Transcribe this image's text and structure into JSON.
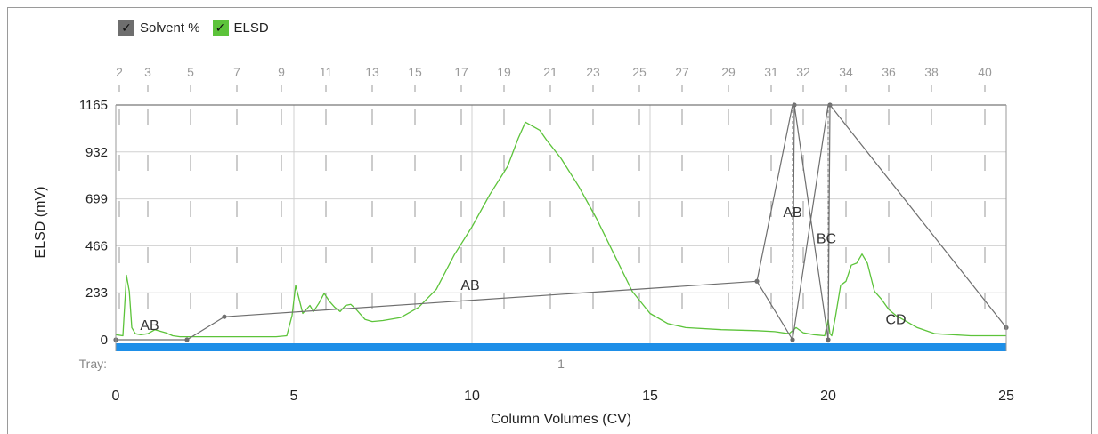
{
  "legend": [
    {
      "label": "Solvent %",
      "color": "#6e6e6e",
      "checked": "✓"
    },
    {
      "label": "ELSD",
      "color": "#5cc33a",
      "checked": "✓"
    }
  ],
  "chart_data": {
    "type": "line",
    "xlabel": "Column Volumes (CV)",
    "ylabel": "ELSD (mV)",
    "xlim": [
      0,
      25
    ],
    "ylim": [
      0,
      1165
    ],
    "x_ticks": [
      0,
      5,
      10,
      15,
      20,
      25
    ],
    "y_ticks": [
      0,
      233,
      466,
      699,
      932,
      1165
    ],
    "grid": true,
    "tray_label": "Tray:",
    "tray_value": "1",
    "tray_color": "#1e8fe8",
    "fraction_ticks": [
      {
        "label": "2",
        "x": 0.1
      },
      {
        "label": "3",
        "x": 0.9
      },
      {
        "label": "5",
        "x": 2.1
      },
      {
        "label": "7",
        "x": 3.4
      },
      {
        "label": "9",
        "x": 4.65
      },
      {
        "label": "11",
        "x": 5.9
      },
      {
        "label": "13",
        "x": 7.2
      },
      {
        "label": "15",
        "x": 8.4
      },
      {
        "label": "17",
        "x": 9.7
      },
      {
        "label": "19",
        "x": 10.9
      },
      {
        "label": "21",
        "x": 12.2
      },
      {
        "label": "23",
        "x": 13.4
      },
      {
        "label": "25",
        "x": 14.7
      },
      {
        "label": "27",
        "x": 15.9
      },
      {
        "label": "29",
        "x": 17.2
      },
      {
        "label": "31",
        "x": 18.4
      },
      {
        "label": "32",
        "x": 19.3
      },
      {
        "label": "34",
        "x": 20.5
      },
      {
        "label": "36",
        "x": 21.7
      },
      {
        "label": "38",
        "x": 22.9
      },
      {
        "label": "40",
        "x": 24.4
      }
    ],
    "series": [
      {
        "name": "ELSD",
        "color": "#5cc33a",
        "x": [
          0,
          0.2,
          0.3,
          0.38,
          0.45,
          0.55,
          0.7,
          0.9,
          1.1,
          1.4,
          1.6,
          1.8,
          2.0,
          2.3,
          2.6,
          3.0,
          3.5,
          4.0,
          4.5,
          4.8,
          4.95,
          5.05,
          5.15,
          5.25,
          5.35,
          5.45,
          5.55,
          5.7,
          5.85,
          6.0,
          6.15,
          6.3,
          6.45,
          6.6,
          6.75,
          6.9,
          7.0,
          7.2,
          7.5,
          8.0,
          8.5,
          9.0,
          9.5,
          10.0,
          10.5,
          11.0,
          11.3,
          11.5,
          11.7,
          11.9,
          12.1,
          12.5,
          13.0,
          13.5,
          14.0,
          14.5,
          15.0,
          15.5,
          16.0,
          17.0,
          18.0,
          18.5,
          18.9,
          19.1,
          19.3,
          19.6,
          19.9,
          20.0,
          20.05,
          20.1,
          20.2,
          20.35,
          20.5,
          20.65,
          20.8,
          20.95,
          21.1,
          21.3,
          21.5,
          21.7,
          21.9,
          22.2,
          22.5,
          23.0,
          24.0,
          25.0
        ],
        "y": [
          25,
          20,
          320,
          240,
          60,
          30,
          25,
          30,
          50,
          35,
          20,
          15,
          15,
          15,
          15,
          15,
          15,
          15,
          15,
          20,
          120,
          270,
          200,
          130,
          150,
          170,
          140,
          180,
          230,
          190,
          160,
          140,
          170,
          175,
          150,
          120,
          100,
          90,
          95,
          110,
          160,
          250,
          420,
          560,
          720,
          860,
          1000,
          1080,
          1060,
          1040,
          990,
          900,
          760,
          600,
          420,
          240,
          130,
          80,
          60,
          50,
          45,
          40,
          30,
          60,
          35,
          25,
          20,
          100,
          30,
          20,
          110,
          270,
          290,
          370,
          380,
          425,
          380,
          240,
          200,
          150,
          120,
          90,
          60,
          30,
          20,
          20
        ]
      },
      {
        "name": "Solvent %",
        "color": "#6e6e6e",
        "x": [
          0,
          2,
          3.05,
          18,
          19,
          19.05,
          20,
          20.05,
          25
        ],
        "y": [
          0,
          0,
          114,
          290,
          0,
          1165,
          0,
          1165,
          60
        ]
      }
    ],
    "gradient_lines": [
      {
        "x0": 18,
        "y0": 290,
        "x1": 19,
        "y1": 1165
      },
      {
        "x0": 19,
        "y0": 0,
        "x1": 20,
        "y1": 1165
      }
    ],
    "dashed_verticals": [
      19,
      20
    ],
    "annotations": [
      {
        "text": "AB",
        "x": 0.95,
        "y": 70
      },
      {
        "text": "AB",
        "x": 9.95,
        "y": 270
      },
      {
        "text": "AB",
        "x": 19.0,
        "y": 630
      },
      {
        "text": "BC",
        "x": 19.95,
        "y": 500
      },
      {
        "text": "CD",
        "x": 21.9,
        "y": 100
      }
    ]
  }
}
